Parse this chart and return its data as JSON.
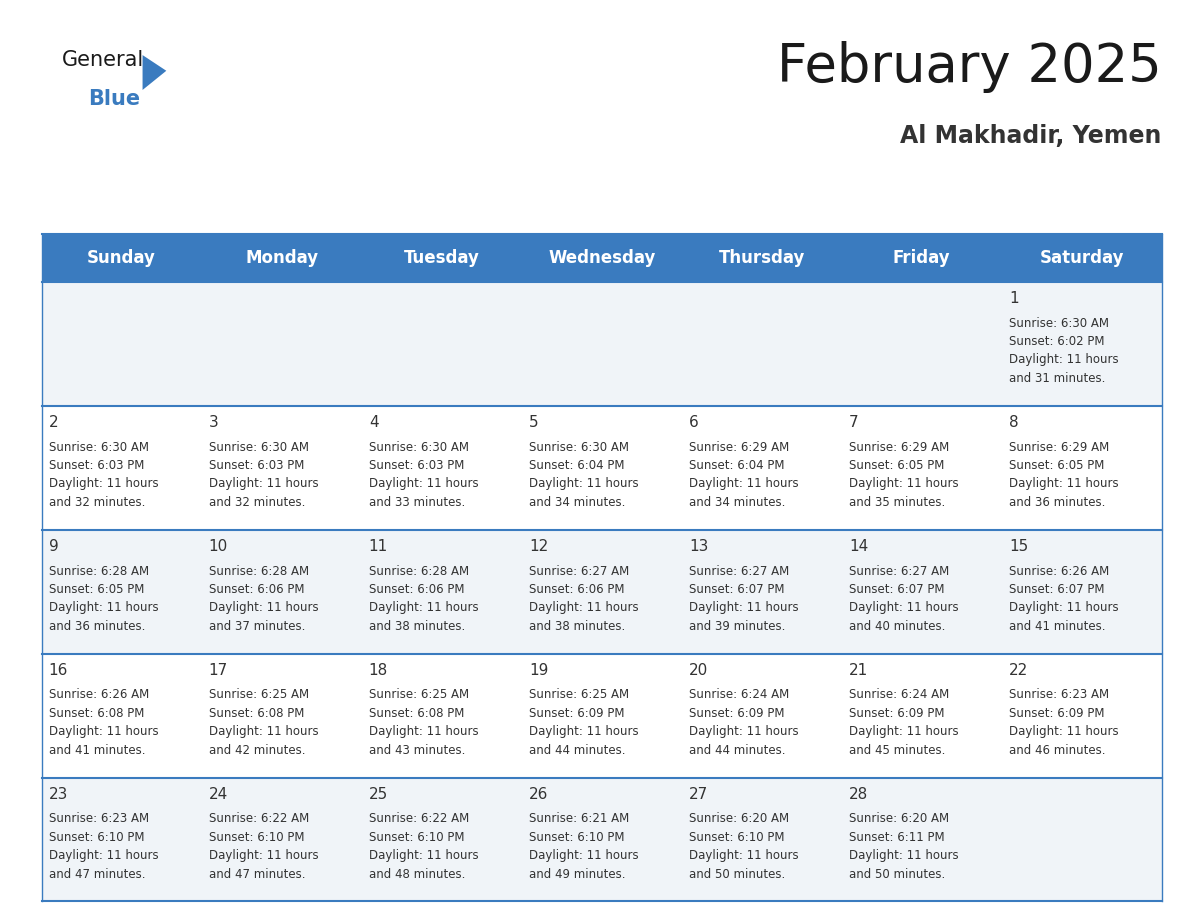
{
  "title": "February 2025",
  "subtitle": "Al Makhadir, Yemen",
  "header_color": "#3a7bbf",
  "header_text_color": "#ffffff",
  "border_color": "#3a7bbf",
  "cell_bg_odd": "#f0f4f8",
  "cell_bg_even": "#ffffff",
  "text_color": "#333333",
  "day_names": [
    "Sunday",
    "Monday",
    "Tuesday",
    "Wednesday",
    "Thursday",
    "Friday",
    "Saturday"
  ],
  "days": [
    {
      "day": 1,
      "col": 6,
      "row": 0,
      "sunrise": "6:30 AM",
      "sunset": "6:02 PM",
      "daylight_h": "11 hours",
      "daylight_m": "and 31 minutes."
    },
    {
      "day": 2,
      "col": 0,
      "row": 1,
      "sunrise": "6:30 AM",
      "sunset": "6:03 PM",
      "daylight_h": "11 hours",
      "daylight_m": "and 32 minutes."
    },
    {
      "day": 3,
      "col": 1,
      "row": 1,
      "sunrise": "6:30 AM",
      "sunset": "6:03 PM",
      "daylight_h": "11 hours",
      "daylight_m": "and 32 minutes."
    },
    {
      "day": 4,
      "col": 2,
      "row": 1,
      "sunrise": "6:30 AM",
      "sunset": "6:03 PM",
      "daylight_h": "11 hours",
      "daylight_m": "and 33 minutes."
    },
    {
      "day": 5,
      "col": 3,
      "row": 1,
      "sunrise": "6:30 AM",
      "sunset": "6:04 PM",
      "daylight_h": "11 hours",
      "daylight_m": "and 34 minutes."
    },
    {
      "day": 6,
      "col": 4,
      "row": 1,
      "sunrise": "6:29 AM",
      "sunset": "6:04 PM",
      "daylight_h": "11 hours",
      "daylight_m": "and 34 minutes."
    },
    {
      "day": 7,
      "col": 5,
      "row": 1,
      "sunrise": "6:29 AM",
      "sunset": "6:05 PM",
      "daylight_h": "11 hours",
      "daylight_m": "and 35 minutes."
    },
    {
      "day": 8,
      "col": 6,
      "row": 1,
      "sunrise": "6:29 AM",
      "sunset": "6:05 PM",
      "daylight_h": "11 hours",
      "daylight_m": "and 36 minutes."
    },
    {
      "day": 9,
      "col": 0,
      "row": 2,
      "sunrise": "6:28 AM",
      "sunset": "6:05 PM",
      "daylight_h": "11 hours",
      "daylight_m": "and 36 minutes."
    },
    {
      "day": 10,
      "col": 1,
      "row": 2,
      "sunrise": "6:28 AM",
      "sunset": "6:06 PM",
      "daylight_h": "11 hours",
      "daylight_m": "and 37 minutes."
    },
    {
      "day": 11,
      "col": 2,
      "row": 2,
      "sunrise": "6:28 AM",
      "sunset": "6:06 PM",
      "daylight_h": "11 hours",
      "daylight_m": "and 38 minutes."
    },
    {
      "day": 12,
      "col": 3,
      "row": 2,
      "sunrise": "6:27 AM",
      "sunset": "6:06 PM",
      "daylight_h": "11 hours",
      "daylight_m": "and 38 minutes."
    },
    {
      "day": 13,
      "col": 4,
      "row": 2,
      "sunrise": "6:27 AM",
      "sunset": "6:07 PM",
      "daylight_h": "11 hours",
      "daylight_m": "and 39 minutes."
    },
    {
      "day": 14,
      "col": 5,
      "row": 2,
      "sunrise": "6:27 AM",
      "sunset": "6:07 PM",
      "daylight_h": "11 hours",
      "daylight_m": "and 40 minutes."
    },
    {
      "day": 15,
      "col": 6,
      "row": 2,
      "sunrise": "6:26 AM",
      "sunset": "6:07 PM",
      "daylight_h": "11 hours",
      "daylight_m": "and 41 minutes."
    },
    {
      "day": 16,
      "col": 0,
      "row": 3,
      "sunrise": "6:26 AM",
      "sunset": "6:08 PM",
      "daylight_h": "11 hours",
      "daylight_m": "and 41 minutes."
    },
    {
      "day": 17,
      "col": 1,
      "row": 3,
      "sunrise": "6:25 AM",
      "sunset": "6:08 PM",
      "daylight_h": "11 hours",
      "daylight_m": "and 42 minutes."
    },
    {
      "day": 18,
      "col": 2,
      "row": 3,
      "sunrise": "6:25 AM",
      "sunset": "6:08 PM",
      "daylight_h": "11 hours",
      "daylight_m": "and 43 minutes."
    },
    {
      "day": 19,
      "col": 3,
      "row": 3,
      "sunrise": "6:25 AM",
      "sunset": "6:09 PM",
      "daylight_h": "11 hours",
      "daylight_m": "and 44 minutes."
    },
    {
      "day": 20,
      "col": 4,
      "row": 3,
      "sunrise": "6:24 AM",
      "sunset": "6:09 PM",
      "daylight_h": "11 hours",
      "daylight_m": "and 44 minutes."
    },
    {
      "day": 21,
      "col": 5,
      "row": 3,
      "sunrise": "6:24 AM",
      "sunset": "6:09 PM",
      "daylight_h": "11 hours",
      "daylight_m": "and 45 minutes."
    },
    {
      "day": 22,
      "col": 6,
      "row": 3,
      "sunrise": "6:23 AM",
      "sunset": "6:09 PM",
      "daylight_h": "11 hours",
      "daylight_m": "and 46 minutes."
    },
    {
      "day": 23,
      "col": 0,
      "row": 4,
      "sunrise": "6:23 AM",
      "sunset": "6:10 PM",
      "daylight_h": "11 hours",
      "daylight_m": "and 47 minutes."
    },
    {
      "day": 24,
      "col": 1,
      "row": 4,
      "sunrise": "6:22 AM",
      "sunset": "6:10 PM",
      "daylight_h": "11 hours",
      "daylight_m": "and 47 minutes."
    },
    {
      "day": 25,
      "col": 2,
      "row": 4,
      "sunrise": "6:22 AM",
      "sunset": "6:10 PM",
      "daylight_h": "11 hours",
      "daylight_m": "and 48 minutes."
    },
    {
      "day": 26,
      "col": 3,
      "row": 4,
      "sunrise": "6:21 AM",
      "sunset": "6:10 PM",
      "daylight_h": "11 hours",
      "daylight_m": "and 49 minutes."
    },
    {
      "day": 27,
      "col": 4,
      "row": 4,
      "sunrise": "6:20 AM",
      "sunset": "6:10 PM",
      "daylight_h": "11 hours",
      "daylight_m": "and 50 minutes."
    },
    {
      "day": 28,
      "col": 5,
      "row": 4,
      "sunrise": "6:20 AM",
      "sunset": "6:11 PM",
      "daylight_h": "11 hours",
      "daylight_m": "and 50 minutes."
    }
  ],
  "num_week_rows": 5,
  "n_cols": 7,
  "title_fontsize": 38,
  "subtitle_fontsize": 17,
  "header_fontsize": 12,
  "day_number_fontsize": 11,
  "cell_text_fontsize": 8.5,
  "logo_general_fontsize": 15,
  "logo_blue_fontsize": 15
}
